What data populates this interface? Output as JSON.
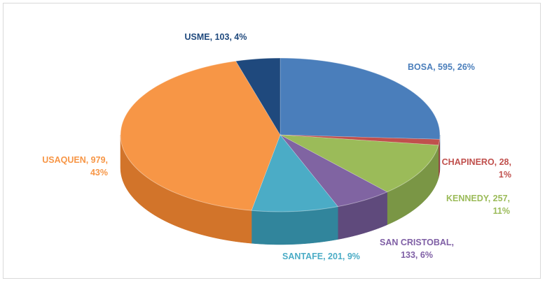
{
  "chart_data": {
    "type": "pie",
    "style": "3d",
    "title": "",
    "slices": [
      {
        "label": "BOSA",
        "value": 595,
        "percent": "26%",
        "color": "#4a7ebb",
        "side": "#35659b",
        "text": [
          "BOSA, 595, 26%"
        ],
        "text_color": "#4a7ebb"
      },
      {
        "label": "CHAPINERO",
        "value": 28,
        "percent": "1%",
        "color": "#c0504d",
        "side": "#9a3c3a",
        "text": [
          "CHAPINERO, 28,",
          "1%"
        ],
        "text_color": "#c0504d"
      },
      {
        "label": "KENNEDY",
        "value": 257,
        "percent": "11%",
        "color": "#9bbb59",
        "side": "#7a9645",
        "text": [
          "KENNEDY, 257,",
          "11%"
        ],
        "text_color": "#9bbb59"
      },
      {
        "label": "SAN CRISTOBAL",
        "value": 133,
        "percent": "6%",
        "color": "#8064a2",
        "side": "#5f4a7c",
        "text": [
          "SAN CRISTOBAL,",
          "133, 6%"
        ],
        "text_color": "#7f5fa5"
      },
      {
        "label": "SANTAFE",
        "value": 201,
        "percent": "9%",
        "color": "#4bacc6",
        "side": "#31859c",
        "text": [
          "SANTAFE, 201, 9%"
        ],
        "text_color": "#4bacc6"
      },
      {
        "label": "USAQUEN",
        "value": 979,
        "percent": "43%",
        "color": "#f79646",
        "side": "#d2742a",
        "text": [
          "USAQUEN, 979,",
          "43%"
        ],
        "text_color": "#f79646"
      },
      {
        "label": "USME",
        "value": 103,
        "percent": "4%",
        "color": "#1f497d",
        "side": "#163659",
        "text": [
          "USME, 103, 4%"
        ],
        "text_color": "#1f497d"
      }
    ]
  }
}
